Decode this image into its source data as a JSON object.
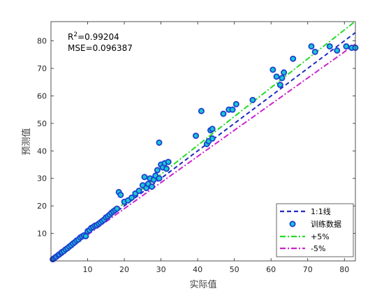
{
  "chart_data": {
    "type": "scatter",
    "xlabel": "实际值",
    "ylabel": "预测值",
    "xlim": [
      0,
      83
    ],
    "ylim": [
      0,
      87
    ],
    "xticks": [
      10,
      20,
      30,
      40,
      50,
      60,
      70,
      80
    ],
    "yticks": [
      10,
      20,
      30,
      40,
      50,
      60,
      70,
      80
    ],
    "grid": false,
    "legend_position": "bottom-right",
    "annotations": {
      "r2_label": "R",
      "r2_sup": "2",
      "r2_value": "=0.99204",
      "mse": "MSE=0.096387"
    },
    "series": [
      {
        "name": "1:1线",
        "kind": "line",
        "style": "dashed",
        "color": "#1f2bbf",
        "slope": 1.0
      },
      {
        "name": "训练数据",
        "kind": "scatter",
        "fill": "#18c8d0",
        "edge": "#1f3fd0",
        "x": [
          0.5,
          0.8,
          1.2,
          1.5,
          2.0,
          2.3,
          2.8,
          3.0,
          3.5,
          4.0,
          4.5,
          5.0,
          5.5,
          6.0,
          6.5,
          7.0,
          7.5,
          8.0,
          8.5,
          9.0,
          9.5,
          10.0,
          10.5,
          11.0,
          11.5,
          12.0,
          12.5,
          13.0,
          13.5,
          14.0,
          14.5,
          15.0,
          15.5,
          16.0,
          16.5,
          17.0,
          17.5,
          18.0,
          18.5,
          19.0,
          20.0,
          21.0,
          22.0,
          23.0,
          24.0,
          25.0,
          25.5,
          26.0,
          26.5,
          27.0,
          27.5,
          28.0,
          28.5,
          29.0,
          29.5,
          30.0,
          30.5,
          31.0,
          31.5,
          32.0,
          29.5,
          39.5,
          41.0,
          42.5,
          43.0,
          43.5,
          44.0,
          44.0,
          47.0,
          48.5,
          49.5,
          50.5,
          55.0,
          60.5,
          61.5,
          62.5,
          63.0,
          63.5,
          66.0,
          71.0,
          72.0,
          76.0,
          78.0,
          80.5,
          82.0,
          83.0
        ],
        "y": [
          0.6,
          0.9,
          1.3,
          1.6,
          2.1,
          2.4,
          2.9,
          3.2,
          3.6,
          4.2,
          4.6,
          5.2,
          5.7,
          6.3,
          6.8,
          7.4,
          7.8,
          8.5,
          8.9,
          9.3,
          9.0,
          10.8,
          11.2,
          12.0,
          12.3,
          12.8,
          13.0,
          13.5,
          14.0,
          14.5,
          15.0,
          15.8,
          16.2,
          16.8,
          17.5,
          18.0,
          18.5,
          19.0,
          25.0,
          24.0,
          21.5,
          22.0,
          23.0,
          24.5,
          25.5,
          27.5,
          30.5,
          26.5,
          28.0,
          30.0,
          27.0,
          29.5,
          31.0,
          33.0,
          30.0,
          35.0,
          34.0,
          35.5,
          33.5,
          36.0,
          43.0,
          45.5,
          54.5,
          42.5,
          43.5,
          47.5,
          44.5,
          48.0,
          53.5,
          55.0,
          55.0,
          57.0,
          58.5,
          69.5,
          67.0,
          64.0,
          66.5,
          68.5,
          73.5,
          78.0,
          76.0,
          78.0,
          76.5,
          78.0,
          77.5,
          77.5
        ]
      },
      {
        "name": "+5%",
        "kind": "line",
        "style": "dash-dot",
        "color": "#22dd22",
        "slope": 1.05
      },
      {
        "name": "-5%",
        "kind": "line",
        "style": "dash-dot",
        "color": "#cc22cc",
        "slope": 0.95
      }
    ]
  }
}
